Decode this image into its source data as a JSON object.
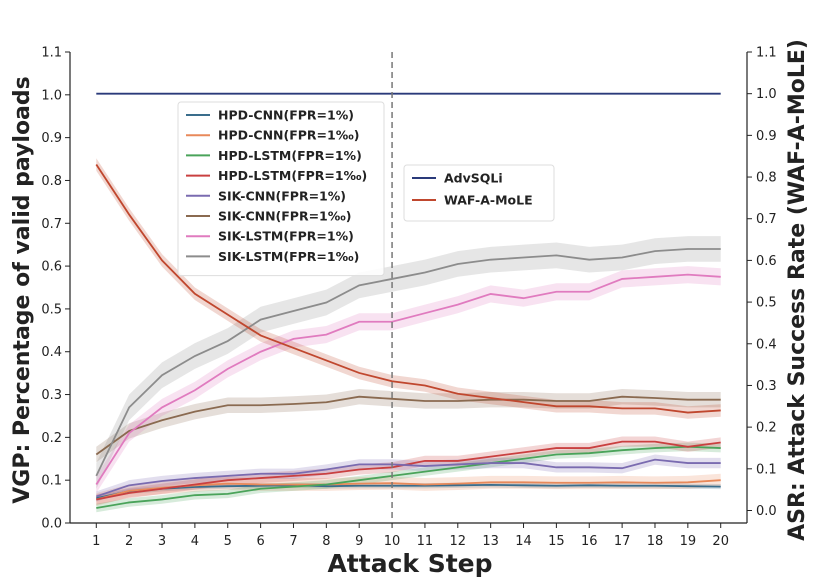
{
  "chart_data": {
    "type": "line",
    "xlabel": "Attack Step",
    "ylabel_left": "VGP: Percentage of valid payloads",
    "ylabel_right": "ASR: Attack Success Rate (WAF-A-MoLE)",
    "x": [
      1,
      2,
      3,
      4,
      5,
      6,
      7,
      8,
      9,
      10,
      11,
      12,
      13,
      14,
      15,
      16,
      17,
      18,
      19,
      20
    ],
    "xlim": [
      0.2,
      20.8
    ],
    "ylim_left": [
      0.0,
      1.1
    ],
    "ylim_right": [
      -0.03,
      1.1
    ],
    "yticks": [
      "0.0",
      "0.1",
      "0.2",
      "0.3",
      "0.4",
      "0.5",
      "0.6",
      "0.7",
      "0.8",
      "0.9",
      "1.0",
      "1.1"
    ],
    "vline_x": 10,
    "grid": false,
    "legend_left_position": "upper-left",
    "legend_right_position": "upper-center",
    "series_left": [
      {
        "name": "HPD-CNN(FPR=1%)",
        "color": "#3a6d8c",
        "band": 0.006,
        "values": [
          0.058,
          0.074,
          0.08,
          0.084,
          0.086,
          0.087,
          0.088,
          0.086,
          0.087,
          0.087,
          0.087,
          0.088,
          0.089,
          0.088,
          0.087,
          0.088,
          0.087,
          0.087,
          0.086,
          0.085
        ]
      },
      {
        "name": "HPD-CNN(FPR=1‰)",
        "color": "#e8895a",
        "band": 0.015,
        "values": [
          0.055,
          0.075,
          0.082,
          0.088,
          0.092,
          0.09,
          0.09,
          0.09,
          0.092,
          0.093,
          0.09,
          0.092,
          0.095,
          0.095,
          0.094,
          0.094,
          0.095,
          0.094,
          0.095,
          0.1
        ]
      },
      {
        "name": "HPD-LSTM(FPR=1%)",
        "color": "#4aa35a",
        "band": 0.01,
        "values": [
          0.035,
          0.048,
          0.055,
          0.065,
          0.068,
          0.08,
          0.085,
          0.09,
          0.1,
          0.11,
          0.12,
          0.13,
          0.14,
          0.15,
          0.16,
          0.163,
          0.17,
          0.175,
          0.178,
          0.175
        ]
      },
      {
        "name": "HPD-LSTM(FPR=1‰)",
        "color": "#c94040",
        "band": 0.012,
        "values": [
          0.055,
          0.07,
          0.08,
          0.09,
          0.1,
          0.105,
          0.11,
          0.115,
          0.125,
          0.13,
          0.145,
          0.145,
          0.155,
          0.165,
          0.175,
          0.175,
          0.19,
          0.19,
          0.178,
          0.188
        ]
      },
      {
        "name": "SIK-CNN(FPR=1%)",
        "color": "#7a6bb0",
        "band": 0.012,
        "values": [
          0.062,
          0.088,
          0.098,
          0.105,
          0.11,
          0.115,
          0.115,
          0.125,
          0.137,
          0.137,
          0.133,
          0.137,
          0.14,
          0.14,
          0.13,
          0.13,
          0.128,
          0.148,
          0.14,
          0.14
        ]
      },
      {
        "name": "SIK-CNN(FPR=1‰)",
        "color": "#8a6a50",
        "band": 0.018,
        "values": [
          0.16,
          0.215,
          0.24,
          0.26,
          0.275,
          0.275,
          0.278,
          0.282,
          0.295,
          0.29,
          0.285,
          0.285,
          0.288,
          0.288,
          0.285,
          0.285,
          0.295,
          0.292,
          0.288,
          0.288
        ]
      },
      {
        "name": "SIK-LSTM(FPR=1%)",
        "color": "#e07bbf",
        "band": 0.02,
        "values": [
          0.09,
          0.21,
          0.27,
          0.31,
          0.36,
          0.4,
          0.43,
          0.44,
          0.47,
          0.47,
          0.49,
          0.51,
          0.535,
          0.525,
          0.54,
          0.54,
          0.57,
          0.575,
          0.58,
          0.575
        ]
      },
      {
        "name": "SIK-LSTM(FPR=1‰)",
        "color": "#8c8c8c",
        "band": 0.03,
        "values": [
          0.11,
          0.27,
          0.345,
          0.39,
          0.425,
          0.475,
          0.495,
          0.515,
          0.555,
          0.57,
          0.585,
          0.605,
          0.615,
          0.62,
          0.625,
          0.615,
          0.62,
          0.635,
          0.64,
          0.64
        ]
      }
    ],
    "series_right": [
      {
        "name": "AdvSQLi",
        "color": "#2a3a7a",
        "band": 0,
        "values": [
          1.0,
          1.0,
          1.0,
          1.0,
          1.0,
          1.0,
          1.0,
          1.0,
          1.0,
          1.0,
          1.0,
          1.0,
          1.0,
          1.0,
          1.0,
          1.0,
          1.0,
          1.0,
          1.0,
          1.0
        ]
      },
      {
        "name": "WAF-A-MoLE",
        "color": "#c0472e",
        "band": 0.015,
        "values": [
          0.83,
          0.71,
          0.6,
          0.52,
          0.47,
          0.42,
          0.39,
          0.36,
          0.33,
          0.31,
          0.3,
          0.28,
          0.27,
          0.26,
          0.25,
          0.25,
          0.245,
          0.245,
          0.235,
          0.24
        ]
      }
    ]
  }
}
